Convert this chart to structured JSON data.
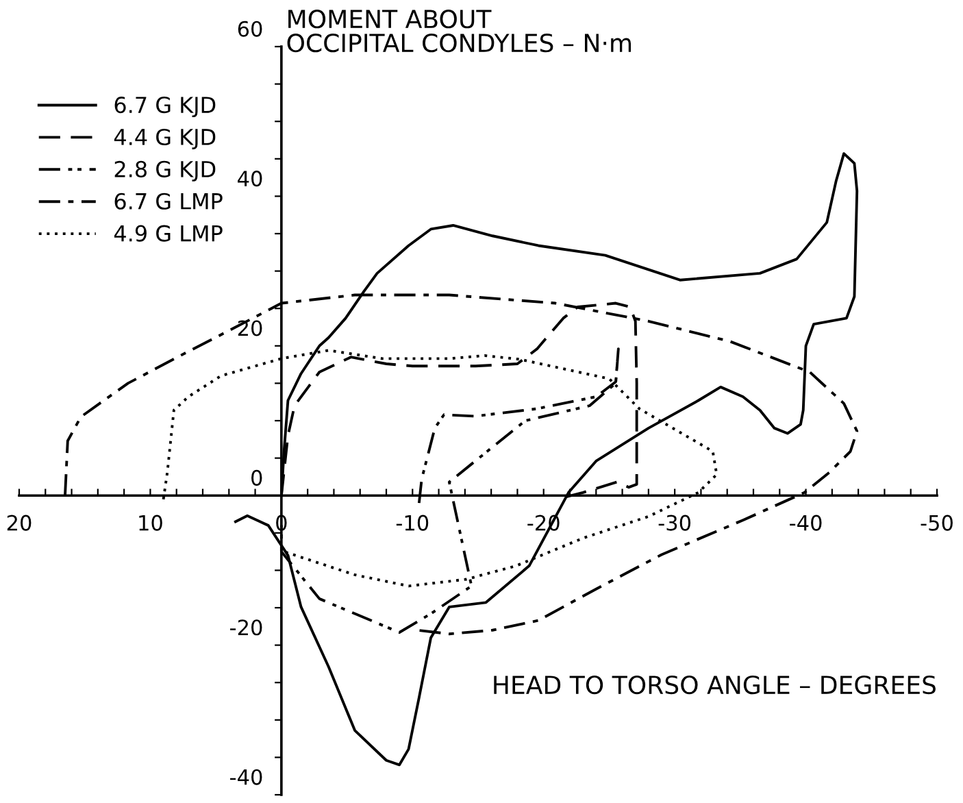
{
  "chart_data": {
    "type": "line",
    "xlabel": "HEAD TO TORSO ANGLE – DEGREES",
    "ylabel": "MOMENT ABOUT\nOCCIPITAL CONDYLES – N·m",
    "xlim": [
      20,
      -50
    ],
    "ylim": [
      -40,
      60
    ],
    "xticks": [
      20,
      {
        "value": 18,
        "label": null
      },
      {
        "value": 16,
        "label": null
      },
      {
        "value": 14,
        "label": null
      },
      {
        "value": 12,
        "label": null
      },
      10,
      {
        "value": 8,
        "label": null
      },
      {
        "value": 6,
        "label": null
      },
      {
        "value": 4,
        "label": null
      },
      {
        "value": 2,
        "label": null
      },
      0,
      {
        "value": -2,
        "label": null
      },
      {
        "value": -4,
        "label": null
      },
      {
        "value": -6,
        "label": null
      },
      {
        "value": -8,
        "label": null
      },
      -10,
      {
        "value": -12,
        "label": null
      },
      {
        "value": -14,
        "label": null
      },
      {
        "value": -16,
        "label": null
      },
      {
        "value": -18,
        "label": null
      },
      -20,
      {
        "value": -22,
        "label": null
      },
      {
        "value": -24,
        "label": null
      },
      {
        "value": -26,
        "label": null
      },
      {
        "value": -28,
        "label": null
      },
      -30,
      {
        "value": -32,
        "label": null
      },
      {
        "value": -34,
        "label": null
      },
      {
        "value": -36,
        "label": null
      },
      {
        "value": -38,
        "label": null
      },
      -40,
      {
        "value": -42,
        "label": null
      },
      {
        "value": -44,
        "label": null
      },
      {
        "value": -46,
        "label": null
      },
      {
        "value": -48,
        "label": null
      },
      -50
    ],
    "yticks": [
      -40,
      {
        "value": -35,
        "label": null
      },
      {
        "value": -30,
        "label": null
      },
      {
        "value": -25,
        "label": null
      },
      -20,
      {
        "value": -15,
        "label": null
      },
      {
        "value": -10,
        "label": null
      },
      {
        "value": -5,
        "label": null
      },
      0,
      {
        "value": 5,
        "label": null
      },
      {
        "value": 10,
        "label": null
      },
      {
        "value": 15,
        "label": null
      },
      20,
      {
        "value": 25,
        "label": null
      },
      {
        "value": 30,
        "label": null
      },
      {
        "value": 35,
        "label": null
      },
      40,
      {
        "value": 45,
        "label": null
      },
      {
        "value": 50,
        "label": null
      },
      {
        "value": 55,
        "label": null
      },
      60
    ],
    "legend": "top left",
    "marker": "none",
    "series": [
      {
        "name": "6.7 G KJD",
        "color": "#000000",
        "line_style": "solid",
        "x": [
          0,
          -0.2,
          -0.5,
          -1.5,
          -2.9,
          -3.6,
          -4.9,
          -6.3,
          -7.3,
          -9.7,
          -11.4,
          -13.1,
          -16.1,
          -19.6,
          -24.7,
          -30.4,
          -36.5,
          -39.3,
          -41.6,
          -42.3,
          -42.9,
          -43.7,
          -43.9,
          -43.7,
          -43.1,
          -40.6,
          -40,
          -39.8,
          -39.6,
          -38.6,
          -37.6,
          -36.5,
          -35.2,
          -33.5,
          -31.8,
          -28,
          -24,
          -21.9,
          -18.9,
          -15.6,
          -12.8,
          -11.4,
          -10.5,
          -9.7,
          -9,
          -8,
          -5.6,
          -3.6,
          -1.5,
          -0.5,
          1,
          2.6,
          3.5
        ],
        "values": [
          0,
          5.9,
          12.7,
          16.3,
          20,
          21.1,
          23.7,
          27.3,
          29.7,
          33.4,
          35.6,
          36.1,
          34.7,
          33.4,
          32.1,
          28.8,
          29.7,
          31.6,
          36.5,
          42,
          45.7,
          44.4,
          40.7,
          26.6,
          23.7,
          22.9,
          20,
          11.4,
          9.5,
          8.3,
          9,
          11.4,
          13.2,
          14.5,
          12.7,
          9,
          4.6,
          0.4,
          -9.4,
          -14.3,
          -14.9,
          -19,
          -27,
          -33.9,
          -36,
          -35.4,
          -31.4,
          -22.9,
          -14.9,
          -8,
          -4,
          -2.7,
          -3.5
        ]
      },
      {
        "name": "4.4 G KJD",
        "color": "#000000",
        "line_style": "dashed",
        "x": [
          0,
          -0.5,
          -1,
          -2.9,
          -5.3,
          -8,
          -10,
          -14.8,
          -18,
          -19.5,
          -21.5,
          -22.6,
          -25.5,
          -26.6,
          -27,
          -27.1,
          -27.1,
          -27.1,
          -26.5,
          -25.6,
          -23,
          -21
        ],
        "values": [
          0,
          8,
          12,
          16.5,
          18.5,
          17.6,
          17.3,
          17.3,
          17.6,
          19.6,
          23.7,
          25.2,
          25.7,
          25.2,
          23.3,
          15,
          5,
          1.5,
          1.1,
          1.8,
          0.4,
          -0.5
        ]
      },
      {
        "name": "2.8 G KJD",
        "color": "#000000",
        "line_style": "dashdotdot",
        "x": [
          -10.5,
          -10.7,
          -11.7,
          -12.4,
          -14.8,
          -19.5,
          -24,
          -25.5,
          -25.7,
          -25.5,
          -23.5,
          -18.6,
          -12.8,
          -14.5,
          -11.4,
          -9,
          -2.9,
          0,
          0
        ],
        "values": [
          -1,
          2.2,
          9,
          10.8,
          10.6,
          11.6,
          13.2,
          15.2,
          19.6,
          15,
          12,
          10,
          1.8,
          -12.1,
          -15.8,
          -18.3,
          -13.8,
          -7.5,
          -3
        ]
      },
      {
        "name": "6.7 G LMP",
        "color": "#000000",
        "line_style": "dashdot",
        "x": [
          16.5,
          16.3,
          15.3,
          11.7,
          7.7,
          3.6,
          0,
          -5.6,
          -12.8,
          -20.9,
          -28,
          -34.2,
          -40.3,
          -42.9,
          -43.9,
          -43.4,
          -41.8,
          -39.9,
          -35.2,
          -29,
          -24,
          -19.6,
          -16.1,
          -12.8,
          -10.4
        ],
        "values": [
          0,
          7.3,
          10.5,
          15,
          18.7,
          22.4,
          25.7,
          26.8,
          26.8,
          25.7,
          23.3,
          20.6,
          16.5,
          12.3,
          8.6,
          5.9,
          3.1,
          0.4,
          -3.3,
          -7.9,
          -12.5,
          -16.7,
          -18,
          -18.5,
          -18
        ]
      },
      {
        "name": "4.9 G LMP",
        "color": "#000000",
        "line_style": "dotted",
        "x": [
          9,
          8.7,
          8.2,
          7.1,
          4.6,
          0,
          -3.6,
          -7.7,
          -12.8,
          -15.5,
          -18.2,
          -25,
          -27.3,
          -32.9,
          -33.2,
          -31.8,
          -28,
          -23,
          -17.9,
          -14.1,
          -9.7,
          -5.6,
          -0.2
        ],
        "values": [
          -0.5,
          3.1,
          11.4,
          13.2,
          16,
          18.3,
          19.4,
          18.3,
          18.3,
          18.7,
          18.2,
          15.6,
          11.6,
          5.9,
          2.8,
          0.4,
          -2.8,
          -5.7,
          -9.4,
          -11.2,
          -12.1,
          -10.6,
          -7.5
        ]
      }
    ]
  }
}
